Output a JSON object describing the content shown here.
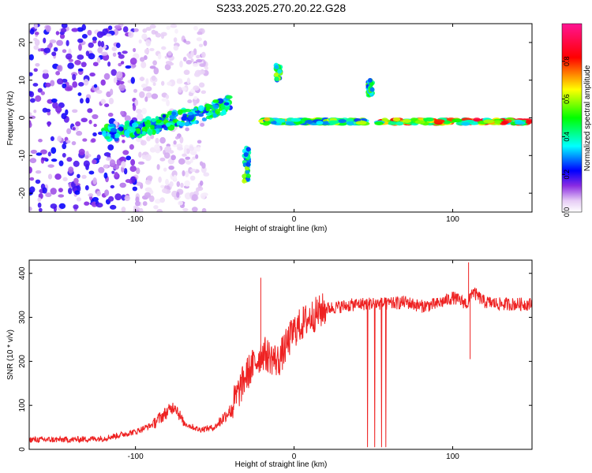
{
  "figure": {
    "title": "S233.2025.270.20.22.G28"
  },
  "chart_data": [
    {
      "type": "heatmap",
      "xlabel": "Height of straight line (km)",
      "ylabel": "Frequency (Hz)",
      "xlim": [
        -167,
        150
      ],
      "ylim": [
        -25,
        25
      ],
      "xticks": [
        -100,
        0,
        100
      ],
      "yticks": [
        -20,
        -10,
        0,
        10,
        20
      ],
      "colorbar": {
        "label": "Normalized spectral amplitude",
        "range": [
          0,
          1
        ],
        "ticks": [
          0.0,
          0.2,
          0.4,
          0.6,
          0.8
        ],
        "colors": [
          "#ffffff",
          "#e6ccf5",
          "#8a2be2",
          "#0000ff",
          "#00ffff",
          "#00ff00",
          "#ffff00",
          "#ff0000",
          "#ff1493"
        ]
      },
      "features": [
        {
          "name": "noise-cloud",
          "x_range": [
            -167,
            -100
          ],
          "f_range": [
            -25,
            25
          ],
          "amplitude": 0.15
        },
        {
          "name": "rising-trace",
          "x": [
            -120,
            -100,
            -80,
            -60,
            -45,
            -40
          ],
          "f": [
            -4,
            -3,
            -1,
            1,
            3,
            4
          ],
          "amplitude": 0.35
        },
        {
          "name": "low-spur",
          "x": -30,
          "f_range": [
            -17,
            -8
          ],
          "amplitude": 0.45
        },
        {
          "name": "high-spur",
          "x": -10,
          "f_range": [
            10,
            14
          ],
          "amplitude": 0.45
        },
        {
          "name": "mid-segment",
          "x_range": [
            -20,
            45
          ],
          "f": -1,
          "amplitude": 0.7
        },
        {
          "name": "right-spur",
          "x": 48,
          "f_range": [
            6,
            10
          ],
          "amplitude": 0.4
        },
        {
          "name": "carrier-line",
          "x_range": [
            52,
            150
          ],
          "f": -1,
          "amplitude": 0.9
        }
      ]
    },
    {
      "type": "line",
      "xlabel": "Height of straight line (km)",
      "ylabel": "SNR (10 * v/v)",
      "xlim": [
        -167,
        150
      ],
      "ylim": [
        0,
        430
      ],
      "xticks": [
        -100,
        0,
        100
      ],
      "yticks": [
        0,
        100,
        200,
        300,
        400
      ],
      "series": [
        {
          "name": "SNR",
          "color": "#ee2222",
          "x": [
            -167,
            -140,
            -120,
            -100,
            -90,
            -80,
            -75,
            -70,
            -60,
            -50,
            -40,
            -30,
            -20,
            -10,
            0,
            10,
            20,
            30,
            40,
            50,
            60,
            70,
            80,
            90,
            100,
            110,
            112,
            120,
            130,
            140,
            150
          ],
          "y": [
            22,
            22,
            25,
            40,
            55,
            85,
            100,
            60,
            45,
            50,
            90,
            170,
            220,
            200,
            270,
            300,
            320,
            325,
            330,
            332,
            330,
            335,
            325,
            330,
            345,
            330,
            360,
            335,
            330,
            330,
            330
          ],
          "spikes": [
            {
              "x": -21,
              "y": 390
            },
            {
              "x": 110,
              "y": 425
            },
            {
              "x": 111,
              "y": 205
            }
          ],
          "dropouts_x_range": [
            35,
            60
          ]
        }
      ]
    }
  ]
}
